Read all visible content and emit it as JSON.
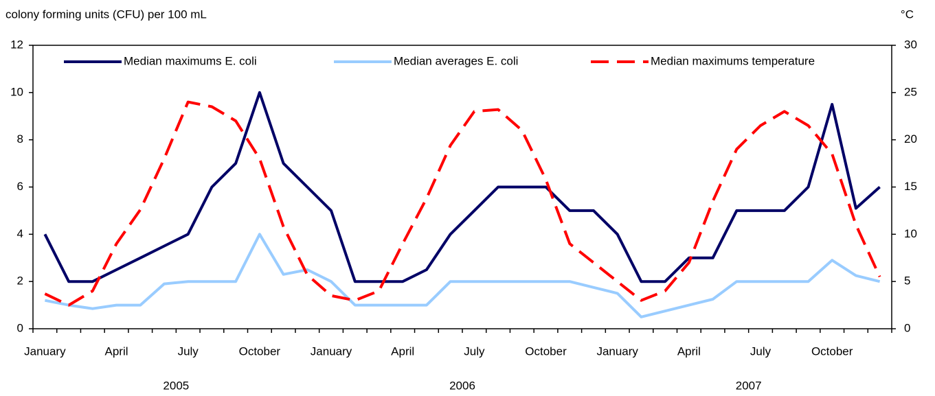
{
  "chart_data": {
    "type": "line",
    "y_axis_label": "colony forming units (CFU) per 100 mL",
    "y2_axis_label": "°C",
    "categories": [
      "January",
      null,
      null,
      "April",
      null,
      null,
      "July",
      null,
      null,
      "October",
      null,
      null,
      "January",
      null,
      null,
      "April",
      null,
      null,
      "July",
      null,
      null,
      "October",
      null,
      null,
      "January",
      null,
      null,
      "April",
      null,
      null,
      "July",
      null,
      null,
      "October",
      null,
      null
    ],
    "year_labels": [
      "2005",
      "2006",
      "2007"
    ],
    "ylim": [
      0,
      12
    ],
    "yticks": [
      0,
      2,
      4,
      6,
      8,
      10,
      12
    ],
    "y2lim": [
      0,
      30
    ],
    "y2ticks": [
      0,
      5,
      10,
      15,
      20,
      25,
      30
    ],
    "grid": false,
    "series": [
      {
        "name": "Median maximums E. coli",
        "color": "#000066",
        "dash": false,
        "values": [
          4,
          2,
          2,
          2.5,
          3,
          3.5,
          4,
          6,
          7,
          10,
          7,
          6,
          5,
          2,
          2,
          2,
          2.5,
          4,
          5,
          6,
          6,
          6,
          5,
          5,
          4,
          2,
          2,
          3,
          3,
          5,
          5,
          5,
          6,
          9.5,
          5.1,
          6
        ]
      },
      {
        "name": "Median averages E. coli",
        "color": "#99ccff",
        "dash": false,
        "values": [
          1.2,
          1,
          0.85,
          1,
          1,
          1.9,
          2,
          2,
          2,
          4,
          2.3,
          2.5,
          2,
          1,
          1,
          1,
          1,
          2,
          2,
          2,
          2,
          2,
          2,
          1.75,
          1.5,
          0.5,
          0.75,
          1,
          1.25,
          2,
          2,
          2,
          2,
          2.9,
          2.25,
          2
        ]
      },
      {
        "name": "Median maximums temperature",
        "color": "#ff0000",
        "dash": true,
        "axis": "y2",
        "values": [
          3.7,
          2.5,
          4,
          9,
          12.6,
          18,
          24,
          23.5,
          22,
          18,
          10.8,
          5.7,
          3.5,
          3,
          4,
          9,
          13.8,
          19.4,
          23,
          23.2,
          21,
          15.8,
          9,
          7,
          5,
          3,
          4,
          7,
          13.5,
          19,
          21.5,
          23,
          21.5,
          18.5,
          11,
          5.5
        ]
      }
    ]
  }
}
